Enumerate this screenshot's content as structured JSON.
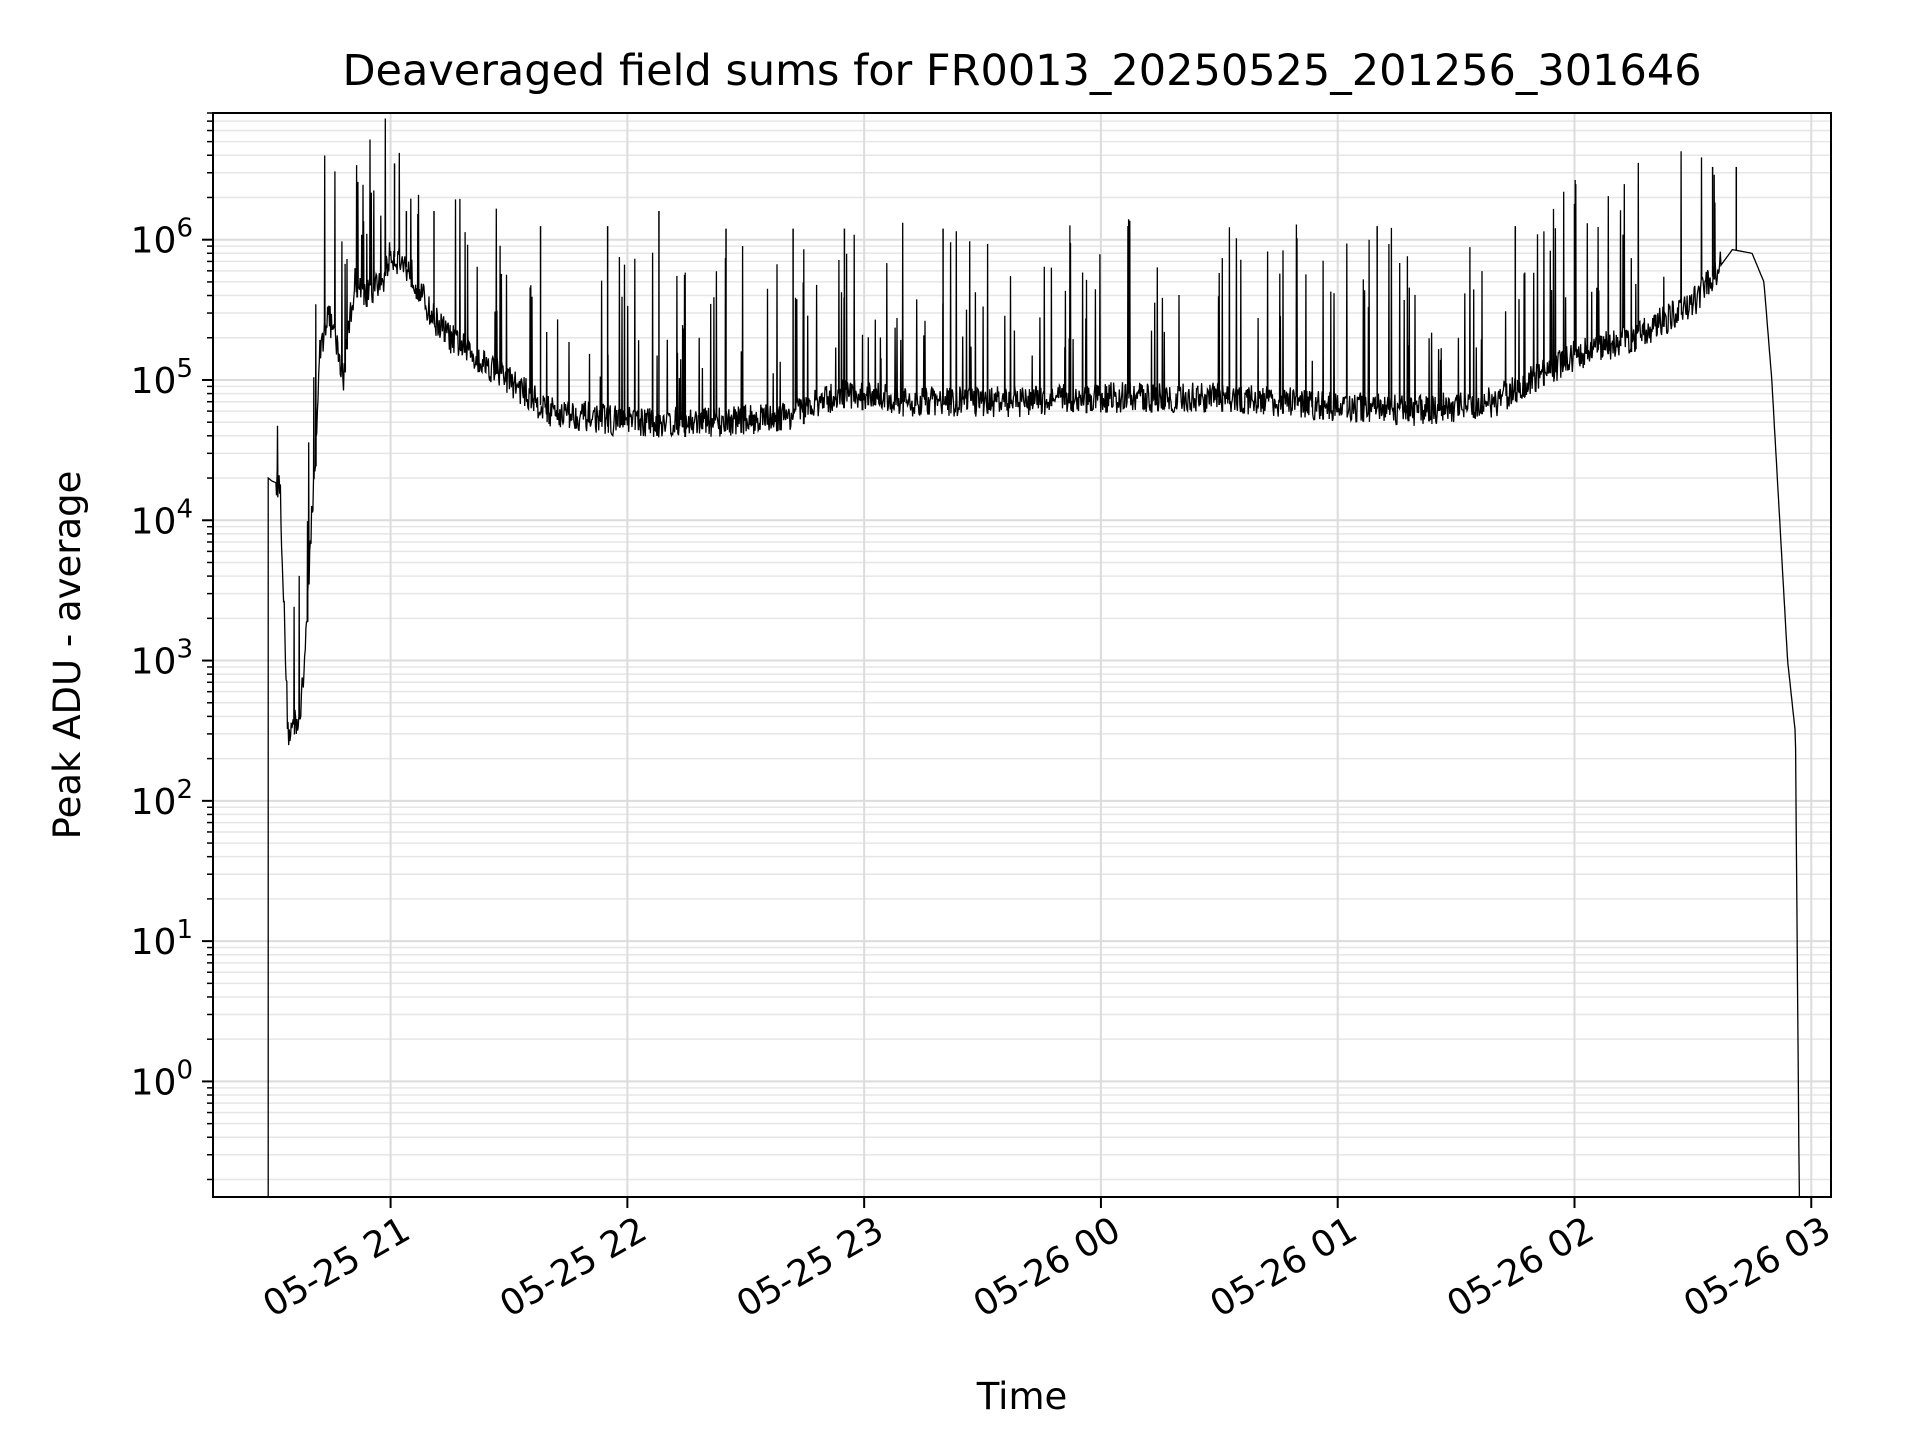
{
  "chart_data": {
    "type": "line",
    "title": "Deaveraged field sums for FR0013_20250525_201256_301646",
    "xlabel": "Time",
    "ylabel": "Peak ADU - average",
    "yscale": "log",
    "ylim": [
      0.15,
      8000000
    ],
    "xlim": [
      "2025-05-25 20:15",
      "2025-05-26 03:05"
    ],
    "grid": "on (major and minor)",
    "line_color": "#000000",
    "x_ticks": [
      {
        "t": "2025-05-25 21:00",
        "label": "05-25 21"
      },
      {
        "t": "2025-05-25 22:00",
        "label": "05-25 22"
      },
      {
        "t": "2025-05-25 23:00",
        "label": "05-25 23"
      },
      {
        "t": "2025-05-26 00:00",
        "label": "05-26 00"
      },
      {
        "t": "2025-05-26 01:00",
        "label": "05-26 01"
      },
      {
        "t": "2025-05-26 02:00",
        "label": "05-26 02"
      },
      {
        "t": "2025-05-26 03:00",
        "label": "05-26 03"
      }
    ],
    "y_ticks": [
      {
        "value": 1,
        "base": "10",
        "exp": "0"
      },
      {
        "value": 10,
        "base": "10",
        "exp": "1"
      },
      {
        "value": 100,
        "base": "10",
        "exp": "2"
      },
      {
        "value": 1000,
        "base": "10",
        "exp": "3"
      },
      {
        "value": 10000,
        "base": "10",
        "exp": "4"
      },
      {
        "value": 100000,
        "base": "10",
        "exp": "5"
      },
      {
        "value": 1000000,
        "base": "10",
        "exp": "6"
      }
    ],
    "series": [
      {
        "x": [
          "2025-05-25 20:29",
          "2025-05-25 20:30",
          "2025-05-25 20:32",
          "2025-05-25 20:34",
          "2025-05-25 20:37",
          "2025-05-25 20:38",
          "2025-05-25 20:40",
          "2025-05-25 20:41",
          "2025-05-25 20:42",
          "2025-05-25 20:44",
          "2025-05-25 20:46",
          "2025-05-25 20:48",
          "2025-05-25 20:49",
          "2025-05-25 20:51",
          "2025-05-25 20:54",
          "2025-05-25 20:58",
          "2025-05-25 21:00",
          "2025-05-25 21:05",
          "2025-05-25 21:10",
          "2025-05-25 21:15",
          "2025-05-25 21:30",
          "2025-05-25 21:40",
          "2025-05-25 22:00",
          "2025-05-25 22:20",
          "2025-05-25 22:40",
          "2025-05-25 22:55",
          "2025-05-25 23:10",
          "2025-05-25 23:40",
          "2025-05-26 00:00",
          "2025-05-26 00:30",
          "2025-05-26 01:00",
          "2025-05-26 01:20",
          "2025-05-26 01:40",
          "2025-05-26 02:00",
          "2025-05-26 02:15",
          "2025-05-26 02:30",
          "2025-05-26 02:40",
          "2025-05-26 02:45",
          "2025-05-26 02:48",
          "2025-05-26 02:50",
          "2025-05-26 02:52",
          "2025-05-26 02:54",
          "2025-05-26 02:56",
          "2025-05-26 02:57"
        ],
        "y": [
          20000,
          19000,
          18000,
          300,
          400,
          800,
          10000,
          30000,
          150000,
          300000,
          200000,
          100000,
          200000,
          500000,
          400000,
          500000,
          800000,
          600000,
          300000,
          200000,
          100000,
          60000,
          50000,
          50000,
          55000,
          80000,
          70000,
          70000,
          75000,
          75000,
          65000,
          60000,
          70000,
          150000,
          200000,
          350000,
          850000,
          800000,
          500000,
          100000,
          10000,
          1000,
          300,
          0.1
        ],
        "spikes": [
          {
            "t": "2025-05-25 21:01",
            "peak": 3500000
          },
          {
            "t": "2025-05-25 21:04",
            "peak": 1600000
          },
          {
            "t": "2025-05-25 21:11",
            "peak": 1600000
          },
          {
            "t": "2025-05-25 21:38",
            "peak": 1250000
          },
          {
            "t": "2025-05-25 21:55",
            "peak": 1250000
          },
          {
            "t": "2025-05-25 22:08",
            "peak": 1600000
          },
          {
            "t": "2025-05-25 22:25",
            "peak": 1200000
          },
          {
            "t": "2025-05-25 22:42",
            "peak": 1200000
          },
          {
            "t": "2025-05-25 22:55",
            "peak": 1200000
          },
          {
            "t": "2025-05-25 23:20",
            "peak": 1200000
          },
          {
            "t": "2025-05-26 01:10",
            "peak": 1250000
          },
          {
            "t": "2025-05-26 01:45",
            "peak": 1250000
          },
          {
            "t": "2025-05-26 02:00",
            "peak": 1800000
          },
          {
            "t": "2025-05-26 02:35",
            "peak": 3300000
          },
          {
            "t": "2025-05-26 02:41",
            "peak": 3300000
          }
        ]
      }
    ]
  }
}
